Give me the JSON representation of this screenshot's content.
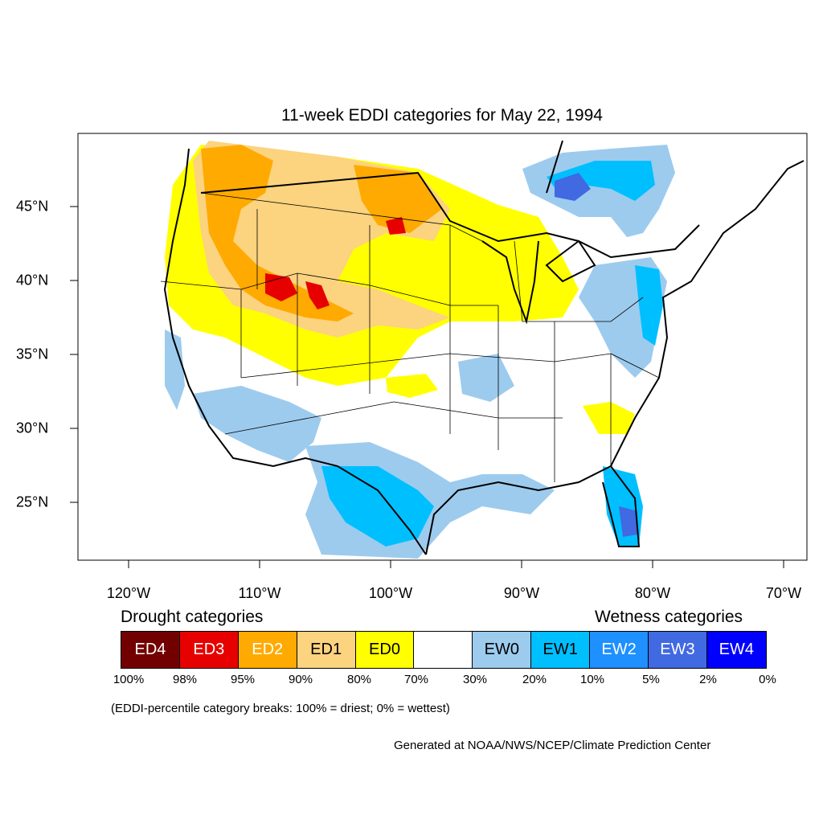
{
  "title": "11-week EDDI categories for May 22, 1994",
  "lon_labels": [
    "120°W",
    "110°W",
    "100°W",
    "90°W",
    "80°W",
    "70°W"
  ],
  "lat_labels": [
    "45°N",
    "40°N",
    "35°N",
    "30°N",
    "25°N"
  ],
  "legend": {
    "drought_heading": "Drought categories",
    "wetness_heading": "Wetness categories",
    "categories": [
      {
        "label": "ED4",
        "color": "#730000",
        "text_color": "#ffffff"
      },
      {
        "label": "ED3",
        "color": "#e60000",
        "text_color": "#ffffff"
      },
      {
        "label": "ED2",
        "color": "#ffaa00",
        "text_color": "#ffffff"
      },
      {
        "label": "ED1",
        "color": "#fcd37f",
        "text_color": "#000000"
      },
      {
        "label": "ED0",
        "color": "#ffff00",
        "text_color": "#000000"
      },
      {
        "label": "",
        "color": "#ffffff",
        "text_color": "#000000"
      },
      {
        "label": "EW0",
        "color": "#9dcbee",
        "text_color": "#000000"
      },
      {
        "label": "EW1",
        "color": "#00bfff",
        "text_color": "#000000"
      },
      {
        "label": "EW2",
        "color": "#1e90ff",
        "text_color": "#ffffff"
      },
      {
        "label": "EW3",
        "color": "#4169e1",
        "text_color": "#ffffff"
      },
      {
        "label": "EW4",
        "color": "#0000ff",
        "text_color": "#ffffff"
      }
    ],
    "breaks": [
      "100%",
      "98%",
      "95%",
      "90%",
      "80%",
      "70%",
      "30%",
      "20%",
      "10%",
      "5%",
      "2%",
      "0%"
    ]
  },
  "note": "(EDDI-percentile category breaks: 100% = driest; 0% = wettest)",
  "credit": "Generated at NOAA/NWS/NCEP/Climate Prediction Center"
}
